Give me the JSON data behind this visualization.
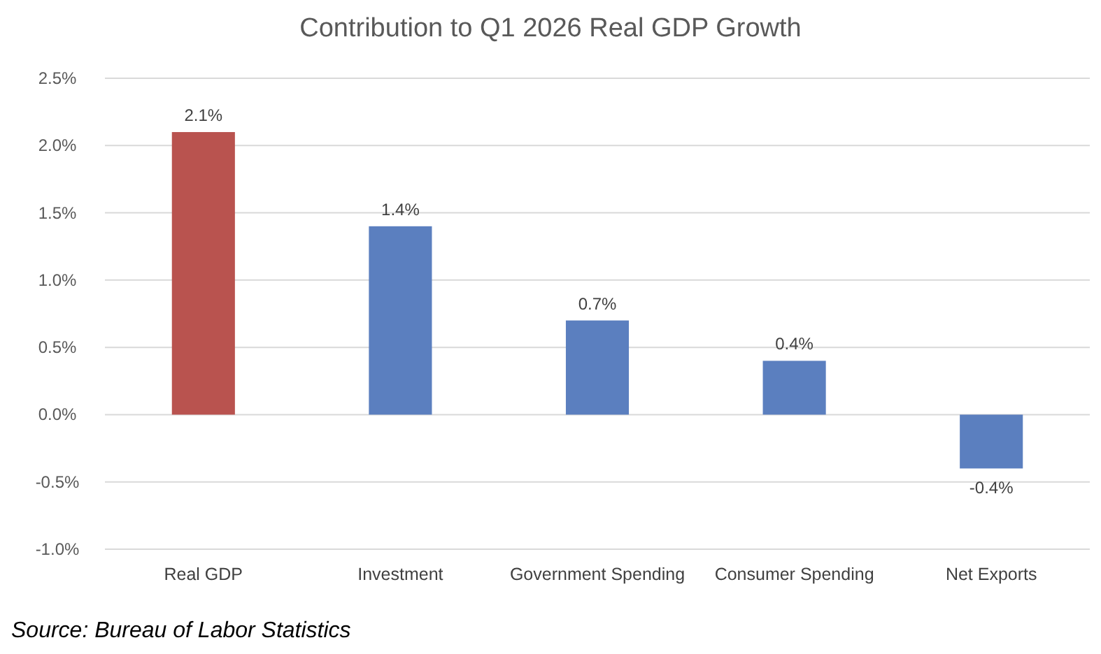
{
  "chart_data": {
    "type": "bar",
    "title": "Contribution to Q1 2026 Real GDP Growth",
    "categories": [
      "Real GDP",
      "Investment",
      "Government Spending",
      "Consumer Spending",
      "Net Exports"
    ],
    "values": [
      2.1,
      1.4,
      0.7,
      0.4,
      -0.4
    ],
    "colors": [
      "#b9534f",
      "#5b7fbf",
      "#5b7fbf",
      "#5b7fbf",
      "#5b7fbf"
    ],
    "value_labels": [
      "2.1%",
      "1.4%",
      "0.7%",
      "0.4%",
      "-0.4%"
    ],
    "ylim": [
      -1.0,
      2.5
    ],
    "yticks": [
      {
        "value": -1.0,
        "label": "-1.0%"
      },
      {
        "value": -0.5,
        "label": "-0.5%"
      },
      {
        "value": 0,
        "label": "0.0%"
      },
      {
        "value": 0.5,
        "label": "0.5%"
      },
      {
        "value": 1.0,
        "label": "1.0%"
      },
      {
        "value": 1.5,
        "label": "1.5%"
      },
      {
        "value": 2.0,
        "label": "2.0%"
      },
      {
        "value": 2.5,
        "label": "2.5%"
      }
    ],
    "grid": "y",
    "annotations": [
      "Source: Bureau of Labor Statistics"
    ]
  }
}
